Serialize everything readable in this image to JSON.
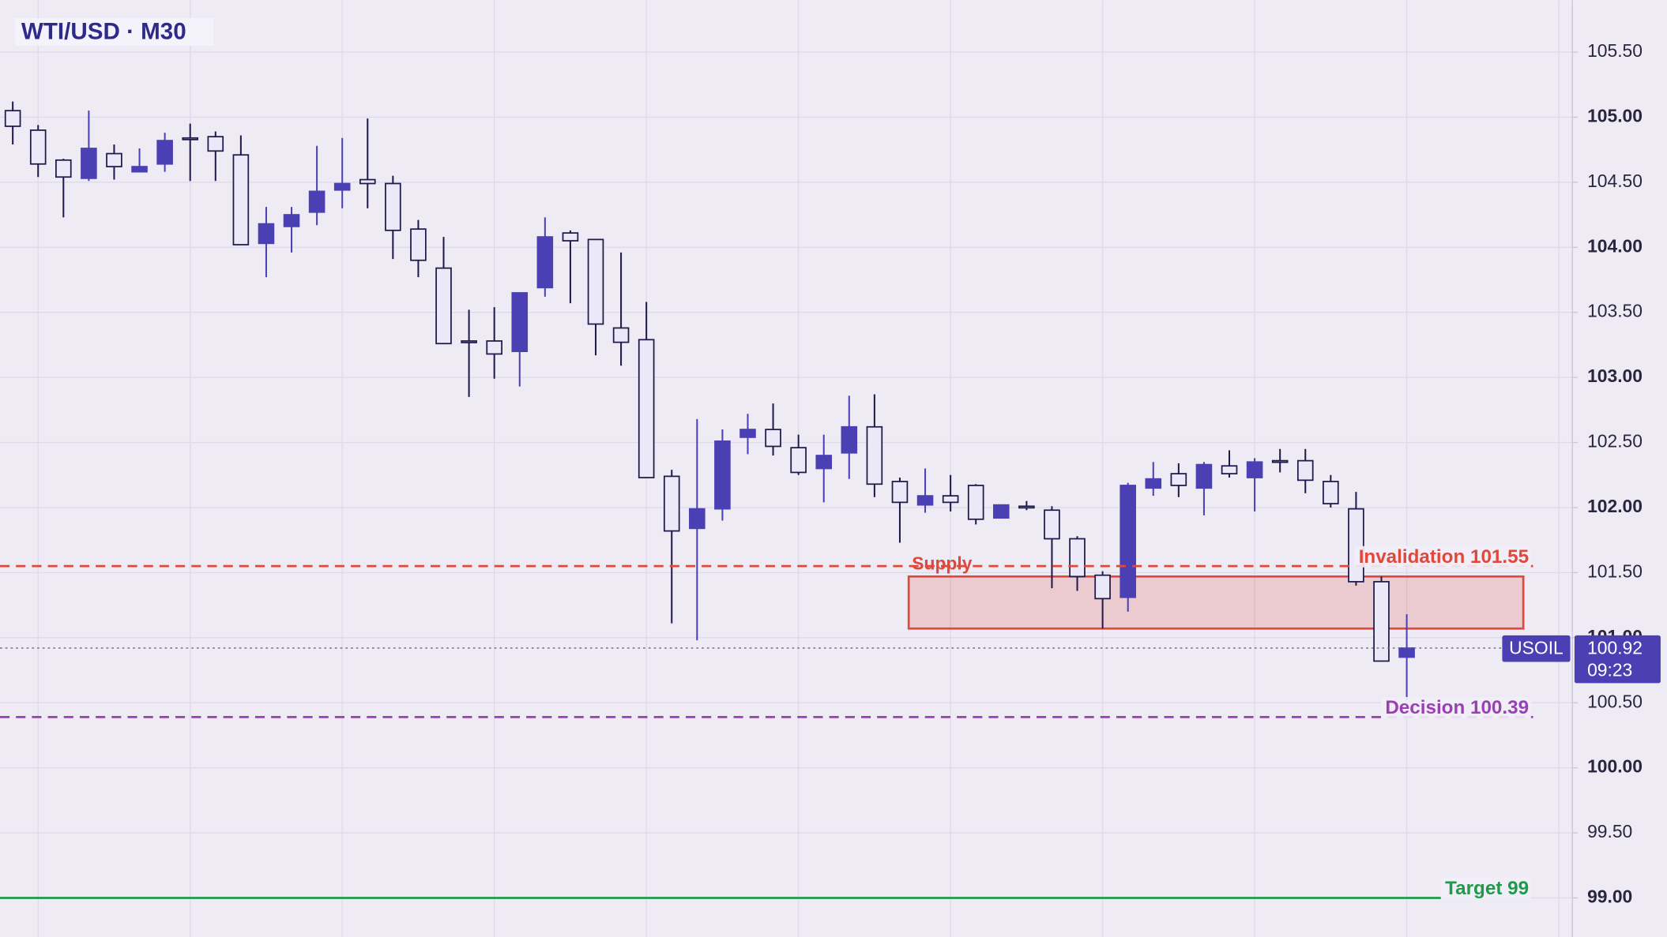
{
  "chart_data": {
    "type": "candlestick",
    "title": "WTI/USD · M30",
    "open": [
      105.05,
      104.9,
      104.67,
      104.53,
      104.72,
      104.58,
      104.64,
      104.84,
      104.85,
      104.71,
      104.03,
      104.16,
      104.27,
      104.44,
      104.52,
      104.49,
      104.14,
      103.84,
      103.28,
      103.28,
      103.2,
      103.69,
      104.11,
      104.06,
      103.38,
      103.29,
      102.24,
      101.84,
      101.99,
      102.54,
      102.6,
      102.46,
      102.3,
      102.42,
      102.62,
      102.2,
      102.02,
      102.09,
      102.17,
      101.92,
      102.01,
      101.98,
      101.76,
      101.48,
      101.31,
      102.15,
      102.26,
      102.15,
      102.32,
      102.23,
      102.36,
      102.36,
      102.2,
      101.99,
      101.43,
      100.85
    ],
    "high": [
      105.12,
      104.94,
      104.68,
      105.05,
      104.79,
      104.76,
      104.88,
      104.95,
      104.89,
      104.86,
      104.31,
      104.31,
      104.78,
      104.84,
      104.99,
      104.55,
      104.21,
      104.08,
      103.52,
      103.54,
      103.65,
      104.23,
      104.13,
      104.06,
      103.96,
      103.58,
      102.29,
      102.68,
      102.6,
      102.72,
      102.8,
      102.56,
      102.56,
      102.86,
      102.87,
      102.23,
      102.3,
      102.25,
      102.18,
      102.02,
      102.05,
      102.01,
      101.78,
      101.51,
      102.19,
      102.35,
      102.34,
      102.35,
      102.44,
      102.38,
      102.45,
      102.45,
      102.25,
      102.12,
      101.47,
      101.18
    ],
    "low": [
      104.79,
      104.54,
      104.23,
      104.51,
      104.52,
      104.58,
      104.58,
      104.51,
      104.51,
      104.02,
      103.77,
      103.96,
      104.17,
      104.3,
      104.3,
      103.91,
      103.77,
      103.26,
      102.85,
      102.99,
      102.93,
      103.62,
      103.57,
      103.17,
      103.09,
      102.23,
      101.11,
      100.98,
      101.9,
      102.41,
      102.4,
      102.25,
      102.04,
      102.22,
      102.08,
      101.73,
      101.96,
      101.97,
      101.87,
      101.92,
      101.98,
      101.38,
      101.36,
      101.07,
      101.2,
      102.09,
      102.08,
      101.94,
      102.23,
      101.97,
      102.27,
      102.11,
      102.0,
      101.4,
      100.82,
      100.52
    ],
    "close": [
      104.93,
      104.64,
      104.54,
      104.76,
      104.62,
      104.62,
      104.82,
      104.83,
      104.74,
      104.02,
      104.18,
      104.25,
      104.43,
      104.49,
      104.49,
      104.13,
      103.9,
      103.26,
      103.27,
      103.18,
      103.65,
      104.08,
      104.05,
      103.41,
      103.27,
      102.23,
      101.82,
      101.99,
      102.51,
      102.6,
      102.47,
      102.27,
      102.4,
      102.62,
      102.18,
      102.04,
      102.09,
      102.04,
      101.91,
      102.02,
      102.0,
      101.76,
      101.47,
      101.3,
      102.17,
      102.22,
      102.17,
      102.33,
      102.26,
      102.35,
      102.35,
      102.21,
      102.03,
      101.43,
      100.82,
      100.92
    ],
    "colors": {
      "up": "#4b40b3",
      "down": "#ebe8f7",
      "outline": "#1e1a4a"
    },
    "ylim": [
      98.7,
      105.9
    ],
    "yticks": [
      {
        "value": 99,
        "label": "99.00"
      },
      {
        "value": 99.5,
        "label": "99.50"
      },
      {
        "value": 100,
        "label": "100.00"
      },
      {
        "value": 100.5,
        "label": "100.50"
      },
      {
        "value": 101,
        "label": "101.00"
      },
      {
        "value": 101.5,
        "label": "101.50"
      },
      {
        "value": 102,
        "label": "102.00"
      },
      {
        "value": 102.5,
        "label": "102.50"
      },
      {
        "value": 103,
        "label": "103.00"
      },
      {
        "value": 103.5,
        "label": "103.50"
      },
      {
        "value": 104,
        "label": "104.00"
      },
      {
        "value": 104.5,
        "label": "104.50"
      },
      {
        "value": 105,
        "label": "105.00"
      },
      {
        "value": 105.5,
        "label": "105.50"
      }
    ],
    "grid": true,
    "levels": [
      {
        "label": "Invalidation 101.55",
        "value": 101.55,
        "color": "#e0483a",
        "style": "dashed"
      },
      {
        "label": "Decision 100.39",
        "value": 100.39,
        "color": "#9b3fb5",
        "style": "dashed"
      },
      {
        "label": "Target 99",
        "value": 99,
        "color": "#1e9a4a",
        "style": "solid"
      }
    ],
    "zone": {
      "label": "Supply",
      "low": 101.07,
      "high": 101.47,
      "color": "#e0483a"
    },
    "last": {
      "symbol": "USOIL",
      "value": 100.92,
      "countdown": "09:23",
      "color": "#4b40b3"
    }
  }
}
